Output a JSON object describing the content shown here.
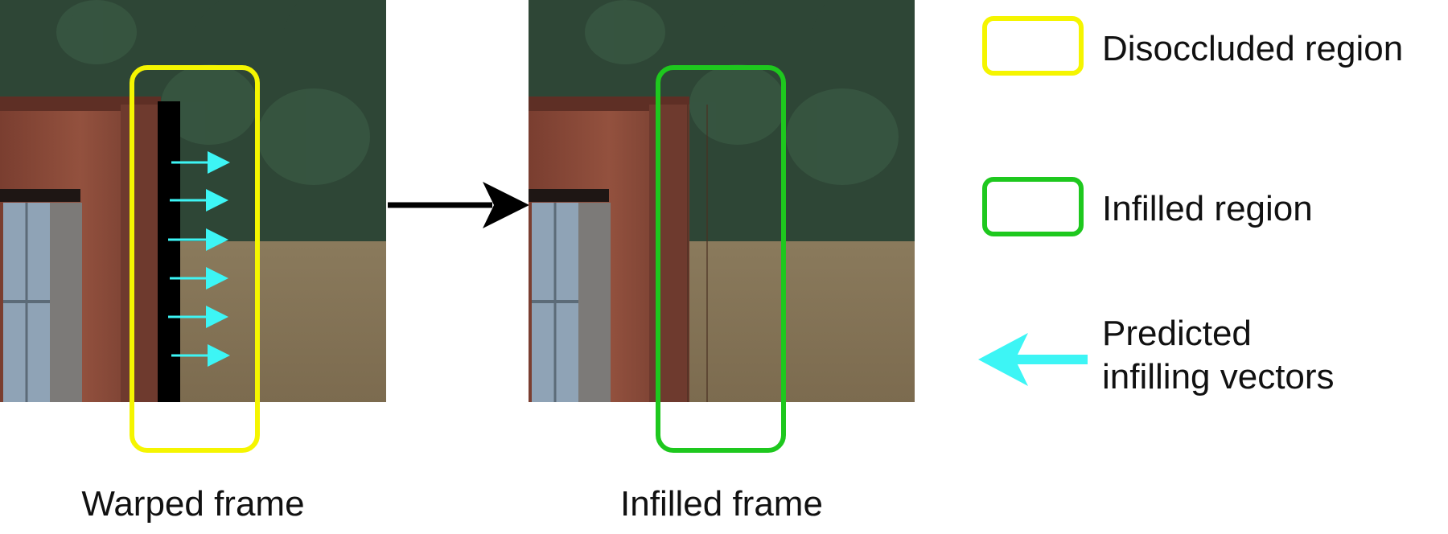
{
  "panels": {
    "warped": {
      "caption": "Warped frame"
    },
    "infilled": {
      "caption": "Infilled frame"
    }
  },
  "legend": {
    "disoccluded": {
      "label": "Disoccluded region",
      "color": "#f5f500"
    },
    "infilled": {
      "label": "Infilled region",
      "color": "#1ec81e"
    },
    "vectors": {
      "label_line1": "Predicted",
      "label_line2": "infilling vectors",
      "color": "#3df5f5"
    }
  },
  "colors": {
    "sky": "#7e8a86",
    "trees": "#2f4a38",
    "field": "#8c7b5c",
    "brick": "#8a4a3a",
    "window": "#8fa3b6",
    "hole": "#000000",
    "arrow": "#000000"
  }
}
